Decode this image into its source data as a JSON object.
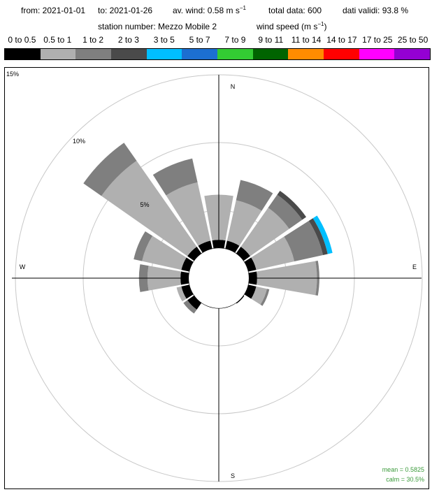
{
  "header": {
    "from": "from: 2021-01-01",
    "to": "to: 2021-01-26",
    "av_wind_prefix": "av. wind:  0.58 m s",
    "av_wind_exp": "−1",
    "total": "total data: 600",
    "valid": "dati validi: 93.8 %",
    "station": "station number:  Mezzo Mobile 2",
    "wind_speed_prefix": "wind speed (m s",
    "wind_speed_exp": "−1",
    "wind_speed_suffix": ")"
  },
  "legend": [
    {
      "label": "0 to 0.5",
      "color": "#000000"
    },
    {
      "label": "0.5 to 1",
      "color": "#b0b0b0"
    },
    {
      "label": "1 to 2",
      "color": "#7f7f7f"
    },
    {
      "label": "2 to 3",
      "color": "#4a4a4a"
    },
    {
      "label": "3 to 5",
      "color": "#00bfff"
    },
    {
      "label": "5 to 7",
      "color": "#1c6fd1"
    },
    {
      "label": "7 to 9",
      "color": "#33cc33"
    },
    {
      "label": "9 to 11",
      "color": "#006400"
    },
    {
      "label": "11 to 14",
      "color": "#ff8c00"
    },
    {
      "label": "14 to 17",
      "color": "#ff0000"
    },
    {
      "label": "17 to 25",
      "color": "#ff00ff"
    },
    {
      "label": "25 to 50",
      "color": "#9400d3"
    }
  ],
  "chart_data": {
    "type": "windrose",
    "rmax": 15,
    "rings": [
      5,
      10,
      15
    ],
    "ring_labels": {
      "outer": "15%",
      "r10": "10%",
      "r5": "5%"
    },
    "directions": {
      "N": "N",
      "E": "E",
      "S": "S",
      "W": "W"
    },
    "calm_percent": 30.5,
    "petals": [
      {
        "dir": 0,
        "b0": 2.4,
        "b1": 6.1,
        "b2": 6.1,
        "b3": 6.1,
        "b4": 6.1
      },
      {
        "dir": 22.5,
        "b0": 2.4,
        "b1": 5.8,
        "b2": 7.5,
        "b3": 7.5,
        "b4": 7.5
      },
      {
        "dir": 45,
        "b0": 2.4,
        "b1": 6.3,
        "b2": 7.6,
        "b3": 8.0,
        "b4": 8.0
      },
      {
        "dir": 67.5,
        "b0": 2.4,
        "b1": 5.6,
        "b2": 8.0,
        "b3": 8.4,
        "b4": 8.8
      },
      {
        "dir": 90,
        "b0": 2.4,
        "b1": 7.3,
        "b2": 7.5,
        "b3": 7.5,
        "b4": 7.5
      },
      {
        "dir": 112.5,
        "b0": 2.4,
        "b1": 3.3,
        "b2": 3.5,
        "b3": 3.5,
        "b4": 3.5
      },
      {
        "dir": 135,
        "b0": 1.8,
        "b1": 1.8,
        "b2": 1.8,
        "b3": 1.8,
        "b4": 1.8
      },
      {
        "dir": 157.5,
        "b0": 1.4,
        "b1": 1.4,
        "b2": 1.4,
        "b3": 1.4,
        "b4": 1.4
      },
      {
        "dir": 180,
        "b0": 1.2,
        "b1": 1.3,
        "b2": 1.7,
        "b3": 1.7,
        "b4": 1.7
      },
      {
        "dir": 202.5,
        "b0": 1.5,
        "b1": 1.5,
        "b2": 1.5,
        "b3": 1.5,
        "b4": 1.5
      },
      {
        "dir": 225,
        "b0": 2.4,
        "b1": 2.4,
        "b2": 2.8,
        "b3": 2.8,
        "b4": 2.8
      },
      {
        "dir": 247.5,
        "b0": 2.4,
        "b1": 2.8,
        "b2": 2.8,
        "b3": 2.8,
        "b4": 2.8
      },
      {
        "dir": 270,
        "b0": 2.4,
        "b1": 5.1,
        "b2": 5.8,
        "b3": 5.8,
        "b4": 5.8
      },
      {
        "dir": 292.5,
        "b0": 2.4,
        "b1": 5.7,
        "b2": 6.4,
        "b3": 6.4,
        "b4": 6.4
      },
      {
        "dir": 315,
        "b0": 2.4,
        "b1": 11.0,
        "b2": 12.8,
        "b3": 12.8,
        "b4": 12.8
      },
      {
        "dir": 337.5,
        "b0": 2.4,
        "b1": 7.3,
        "b2": 9.3,
        "b3": 9.3,
        "b4": 9.3
      }
    ]
  },
  "stats": {
    "mean": "mean = 0.5825",
    "calm": "calm = 30.5%"
  }
}
